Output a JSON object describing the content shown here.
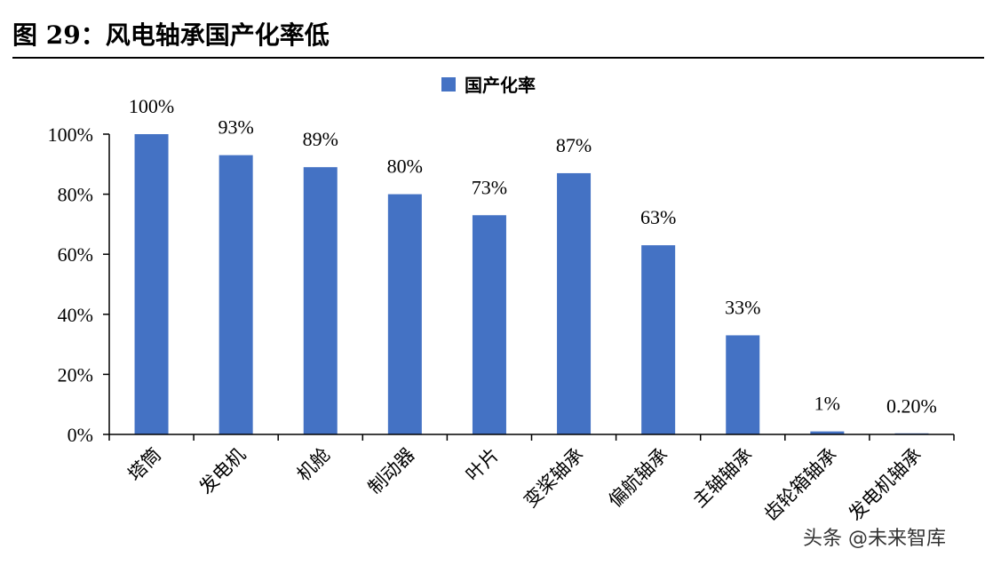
{
  "header": {
    "title": "图 29：风电轴承国产化率低"
  },
  "watermark": "头条 @未来智库",
  "chart_data": {
    "type": "bar",
    "title": "",
    "xlabel": "",
    "ylabel": "",
    "categories": [
      "塔筒",
      "发电机",
      "机舱",
      "制动器",
      "叶片",
      "变桨轴承",
      "偏航轴承",
      "主轴轴承",
      "齿轮箱轴承",
      "发电机轴承"
    ],
    "series": [
      {
        "name": "国产化率",
        "values": [
          100,
          93,
          89,
          80,
          73,
          87,
          63,
          33,
          1,
          0.2
        ],
        "labels": [
          "100%",
          "93%",
          "89%",
          "80%",
          "73%",
          "87%",
          "63%",
          "33%",
          "1%",
          "0.20%"
        ]
      }
    ],
    "yticks": [
      "0%",
      "20%",
      "40%",
      "60%",
      "80%",
      "100%"
    ],
    "ylim": [
      0,
      100
    ],
    "grid": false,
    "legend": "top-center",
    "colors": {
      "bar": "#4472C4",
      "axis": "#000000"
    }
  }
}
